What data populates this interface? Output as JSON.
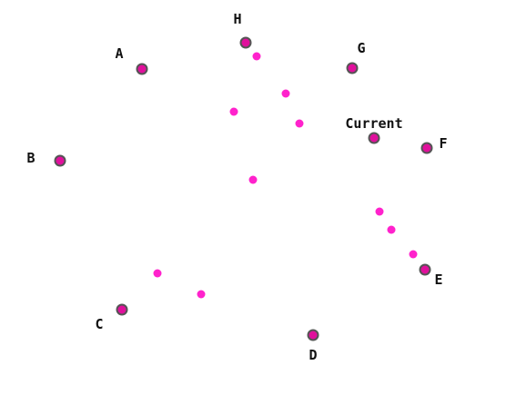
{
  "diagram": {
    "nodes": [
      {
        "id": "A",
        "label": "A"
      },
      {
        "id": "B",
        "label": "B"
      },
      {
        "id": "C",
        "label": "C"
      },
      {
        "id": "D",
        "label": "D"
      },
      {
        "id": "E",
        "label": "E"
      },
      {
        "id": "F",
        "label": "F"
      },
      {
        "id": "G",
        "label": "G"
      },
      {
        "id": "H",
        "label": "H"
      },
      {
        "id": "current",
        "label": "Current"
      }
    ],
    "path_dots_count": 11,
    "colors": {
      "node_fill": "#e0109c",
      "node_stroke": "#555555",
      "dot_fill": "#ff22cc",
      "label": "#111111",
      "background": "#ffffff"
    }
  }
}
